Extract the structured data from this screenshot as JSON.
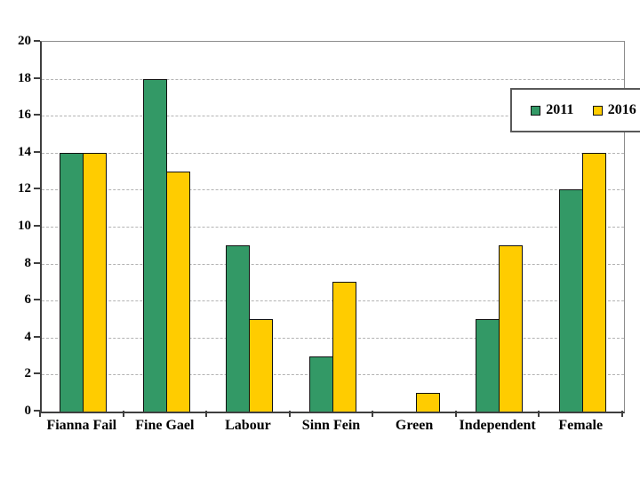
{
  "chart_data": {
    "type": "bar",
    "title": "",
    "xlabel": "",
    "ylabel": "",
    "categories": [
      "Fianna Fail",
      "Fine Gael",
      "Labour",
      "Sinn Fein",
      "Green",
      "Independent",
      "Female"
    ],
    "series": [
      {
        "name": "2011",
        "color": "#339966",
        "values": [
          14,
          18,
          9,
          3,
          0,
          5,
          12
        ]
      },
      {
        "name": "2016",
        "color": "#FFCC00",
        "values": [
          14,
          13,
          5,
          7,
          1,
          9,
          14
        ]
      }
    ],
    "ylim": [
      0,
      20
    ],
    "yticks": [
      0,
      2,
      4,
      6,
      8,
      10,
      12,
      14,
      16,
      18,
      20
    ],
    "grid": "horizontal-dashed",
    "legend_position": "top-right"
  },
  "colors": {
    "background": "#ffffff",
    "bar_border": "#111111",
    "gridline": "#b3b3b3",
    "axis": "#3f3f3f",
    "plot_frame": "#8c8c8c",
    "legend_border": "#595959",
    "text": "#000000"
  }
}
